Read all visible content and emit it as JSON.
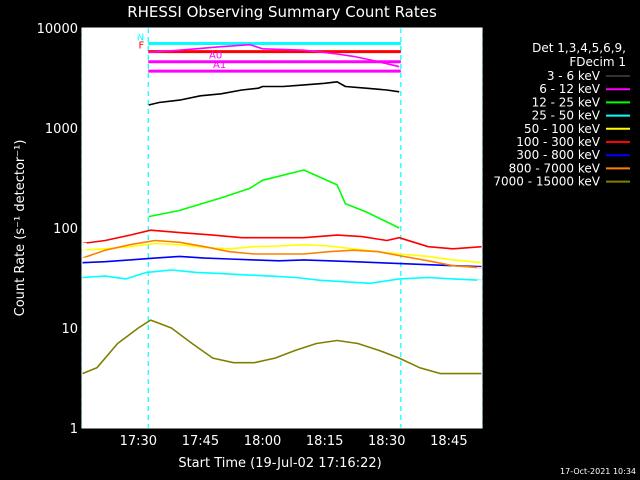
{
  "chart_data": {
    "type": "line",
    "title": "RHESSI Observing Summary Count Rates",
    "xlabel": "Start Time (19-Jul-02 17:16:22)",
    "ylabel": "Count Rate (s⁻¹ detector⁻¹)",
    "y_scale": "log",
    "ylim": [
      1,
      10000
    ],
    "xlim_minutes_after_1700": [
      16.4,
      113.0
    ],
    "x_ticks": [
      {
        "label": "17:30",
        "minute": 30
      },
      {
        "label": "17:45",
        "minute": 45
      },
      {
        "label": "18:00",
        "minute": 60
      },
      {
        "label": "18:15",
        "minute": 75
      },
      {
        "label": "18:30",
        "minute": 90
      },
      {
        "label": "18:45",
        "minute": 105
      }
    ],
    "y_ticks": [
      {
        "label": "1",
        "value": 1
      },
      {
        "label": "10",
        "value": 10
      },
      {
        "label": "100",
        "value": 100
      },
      {
        "label": "1000",
        "value": 1000
      },
      {
        "label": "10000",
        "value": 10000
      }
    ],
    "legend_title": [
      "Det 1,3,4,5,6,9,",
      "FDecim 1"
    ],
    "legend_placement": "right",
    "footer": "17-Oct-2021 10:34",
    "flags": [
      {
        "label": "N",
        "color": "#00ffff",
        "level": 7000
      },
      {
        "label": "F",
        "color": "#ff0000",
        "level": 5800
      },
      {
        "label": "A0",
        "color": "#ff00ff",
        "level": 4600
      },
      {
        "label": "A1",
        "color": "#ff00ff",
        "level": 3700
      }
    ],
    "night_boundaries_minute": [
      16.4,
      32.4,
      93.4,
      113.0
    ],
    "series": [
      {
        "name": "3 - 6 keV",
        "color": "#000000",
        "x": [
          32.5,
          35,
          40,
          45,
          50,
          55,
          59,
          60,
          65,
          70,
          75,
          78,
          80,
          85,
          90,
          93
        ],
        "y": [
          1700,
          1800,
          1900,
          2100,
          2200,
          2400,
          2500,
          2600,
          2600,
          2700,
          2800,
          2900,
          2600,
          2500,
          2400,
          2300
        ]
      },
      {
        "name": "6 - 12 keV",
        "color": "#ff00ff",
        "x": [
          32.5,
          40,
          50,
          57,
          60,
          70,
          78,
          82,
          86,
          90,
          93
        ],
        "y": [
          5700,
          6000,
          6500,
          6800,
          6200,
          6000,
          5500,
          5200,
          4800,
          4400,
          4100
        ]
      },
      {
        "name": "12 - 25 keV",
        "color": "#00ff00",
        "x": [
          32.5,
          40,
          50,
          57,
          60,
          70,
          78,
          80,
          85,
          90,
          93
        ],
        "y": [
          130,
          150,
          200,
          250,
          300,
          380,
          270,
          175,
          145,
          115,
          100
        ]
      },
      {
        "name": "25 - 50 keV",
        "color": "#00ffff",
        "x": [
          16.5,
          22,
          27,
          32,
          38,
          44,
          50,
          56,
          62,
          68,
          74,
          80,
          86,
          93,
          100,
          106,
          113
        ],
        "y": [
          32,
          33,
          31,
          36,
          38,
          36,
          35,
          34,
          33,
          32,
          30,
          29,
          28,
          31,
          32,
          31,
          30
        ]
      },
      {
        "name": "50 - 100 keV",
        "color": "#ffff00",
        "x": [
          16.5,
          22,
          28,
          34,
          40,
          46,
          52,
          58,
          64,
          70,
          76,
          82,
          88,
          93,
          100,
          106,
          113
        ],
        "y": [
          60,
          62,
          65,
          70,
          68,
          64,
          62,
          65,
          66,
          68,
          66,
          62,
          58,
          55,
          52,
          48,
          45
        ]
      },
      {
        "name": "100 - 300 keV",
        "color": "#ff0000",
        "x": [
          16.5,
          22,
          28,
          33,
          40,
          48,
          55,
          62,
          70,
          78,
          84,
          90,
          93,
          100,
          106,
          113
        ],
        "y": [
          70,
          75,
          85,
          95,
          90,
          85,
          80,
          80,
          80,
          85,
          82,
          75,
          80,
          65,
          62,
          65
        ]
      },
      {
        "name": "300 - 800 keV",
        "color": "#0000ff",
        "x": [
          16.5,
          22,
          28,
          34,
          40,
          46,
          52,
          58,
          64,
          70,
          76,
          82,
          88,
          94,
          100,
          106,
          113
        ],
        "y": [
          45,
          46,
          48,
          50,
          52,
          50,
          49,
          48,
          47,
          48,
          47,
          46,
          45,
          44,
          43,
          42,
          41
        ]
      },
      {
        "name": "800 - 7000 keV",
        "color": "#ff8000",
        "x": [
          16.5,
          22,
          28,
          34,
          40,
          46,
          52,
          58,
          64,
          70,
          76,
          82,
          88,
          94,
          100,
          106,
          113
        ],
        "y": [
          50,
          60,
          68,
          75,
          72,
          65,
          58,
          55,
          55,
          55,
          58,
          60,
          58,
          52,
          47,
          42,
          40
        ]
      },
      {
        "name": "7000 - 15000 keV",
        "color": "#808000",
        "x": [
          16.5,
          20,
          25,
          30,
          33,
          38,
          43,
          48,
          53,
          58,
          63,
          68,
          73,
          78,
          83,
          88,
          93,
          98,
          103,
          108,
          113
        ],
        "y": [
          3.5,
          4,
          7,
          10,
          12,
          10,
          7,
          5,
          4.5,
          4.5,
          5,
          6,
          7,
          7.5,
          7,
          6,
          5,
          4,
          3.5,
          3.5,
          3.5
        ]
      }
    ]
  }
}
